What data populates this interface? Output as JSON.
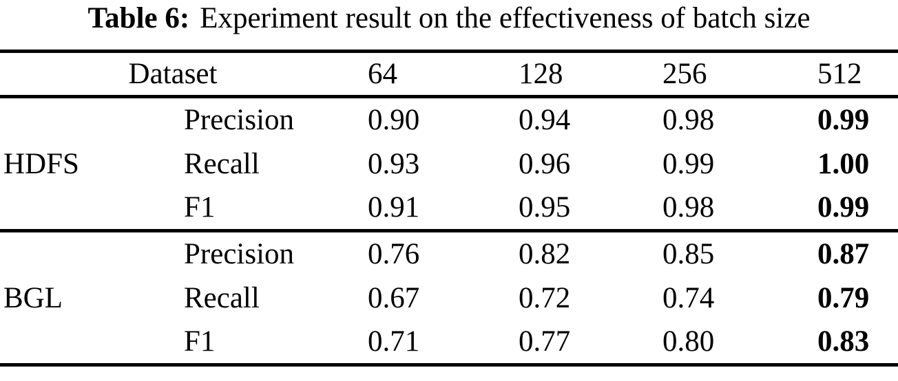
{
  "caption": {
    "label": "Table 6:",
    "text": "Experiment result on the effectiveness of batch size"
  },
  "table": {
    "dataset_header": "Dataset",
    "batch_sizes": [
      "64",
      "128",
      "256",
      "512"
    ],
    "best_column": "512",
    "sections": [
      {
        "group": "HDFS",
        "rows": [
          {
            "metric": "Precision",
            "values": [
              "0.90",
              "0.94",
              "0.98",
              "0.99"
            ]
          },
          {
            "metric": "Recall",
            "values": [
              "0.93",
              "0.96",
              "0.99",
              "1.00"
            ]
          },
          {
            "metric": "F1",
            "values": [
              "0.91",
              "0.95",
              "0.98",
              "0.99"
            ]
          }
        ]
      },
      {
        "group": "BGL",
        "rows": [
          {
            "metric": "Precision",
            "values": [
              "0.76",
              "0.82",
              "0.85",
              "0.87"
            ]
          },
          {
            "metric": "Recall",
            "values": [
              "0.67",
              "0.72",
              "0.74",
              "0.79"
            ]
          },
          {
            "metric": "F1",
            "values": [
              "0.71",
              "0.77",
              "0.80",
              "0.83"
            ]
          }
        ]
      }
    ]
  },
  "colors": {
    "text": "#000000",
    "background": "#ffffff",
    "rule": "#000000"
  }
}
